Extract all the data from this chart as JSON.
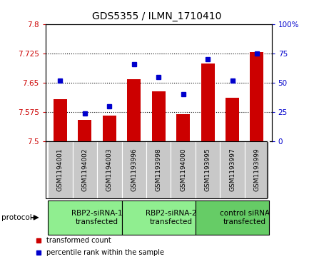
{
  "title": "GDS5355 / ILMN_1710410",
  "samples": [
    "GSM1194001",
    "GSM1194002",
    "GSM1194003",
    "GSM1193996",
    "GSM1193998",
    "GSM1194000",
    "GSM1193995",
    "GSM1193997",
    "GSM1193999"
  ],
  "bar_values": [
    7.608,
    7.555,
    7.565,
    7.66,
    7.628,
    7.57,
    7.7,
    7.612,
    7.73
  ],
  "dot_values": [
    52,
    24,
    30,
    66,
    55,
    40,
    70,
    52,
    75
  ],
  "ylim_left": [
    7.5,
    7.8
  ],
  "ylim_right": [
    0,
    100
  ],
  "yticks_left": [
    7.5,
    7.575,
    7.65,
    7.725,
    7.8
  ],
  "yticks_right": [
    0,
    25,
    50,
    75,
    100
  ],
  "ytick_labels_left": [
    "7.5",
    "7.575",
    "7.65",
    "7.725",
    "7.8"
  ],
  "ytick_labels_right": [
    "0",
    "25",
    "50",
    "75",
    "100%"
  ],
  "hlines": [
    7.575,
    7.65,
    7.725
  ],
  "bar_color": "#CC0000",
  "dot_color": "#0000CC",
  "bar_bottom": 7.5,
  "groups": [
    {
      "label": "RBP2-siRNA-1\ntransfected",
      "start": 0,
      "end": 3,
      "color": "#90EE90"
    },
    {
      "label": "RBP2-siRNA-2\ntransfected",
      "start": 3,
      "end": 6,
      "color": "#90EE90"
    },
    {
      "label": "control siRNA\ntransfected",
      "start": 6,
      "end": 9,
      "color": "#66CC66"
    }
  ],
  "protocol_label": "protocol",
  "legend_bar_label": "transformed count",
  "legend_dot_label": "percentile rank within the sample",
  "sample_box_color": "#C8C8C8",
  "title_fontsize": 10,
  "tick_fontsize": 7.5,
  "group_fontsize": 7.5,
  "sample_fontsize": 6.5
}
